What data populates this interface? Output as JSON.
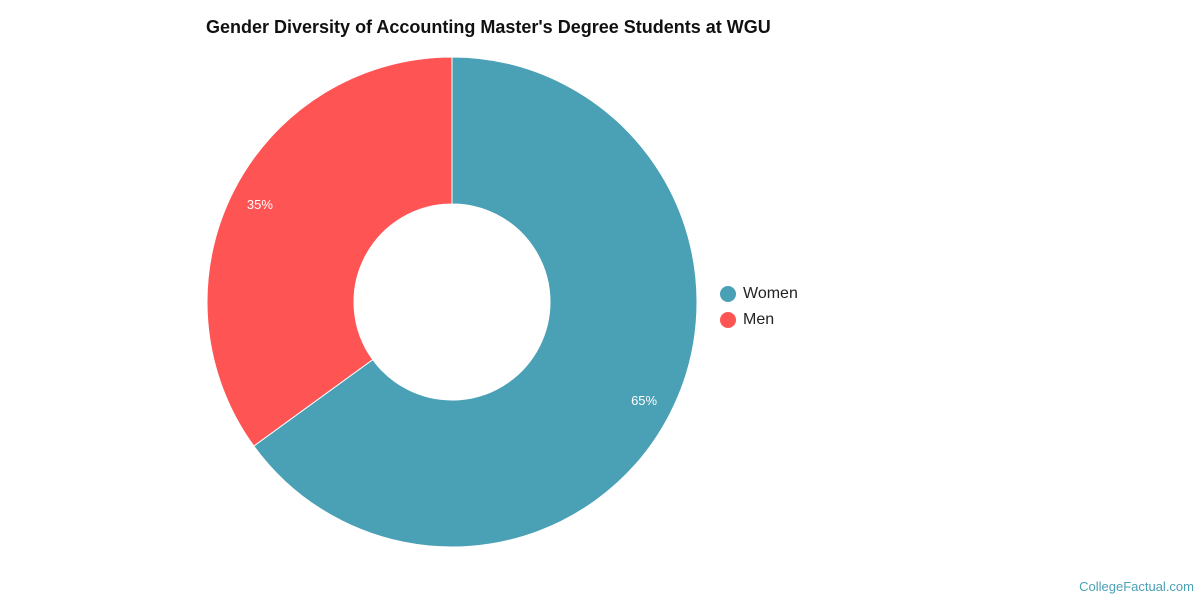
{
  "chart_data": {
    "type": "pie",
    "donut": true,
    "title": "Gender Diversity of Accounting Master's Degree Students at WGU",
    "categories": [
      "Women",
      "Men"
    ],
    "values": [
      65,
      35
    ],
    "data_labels": [
      "65%",
      "35%"
    ],
    "colors": [
      "#4aa0b5",
      "#ff5454"
    ],
    "legend_position": "right"
  },
  "credit": "CollegeFactual.com"
}
